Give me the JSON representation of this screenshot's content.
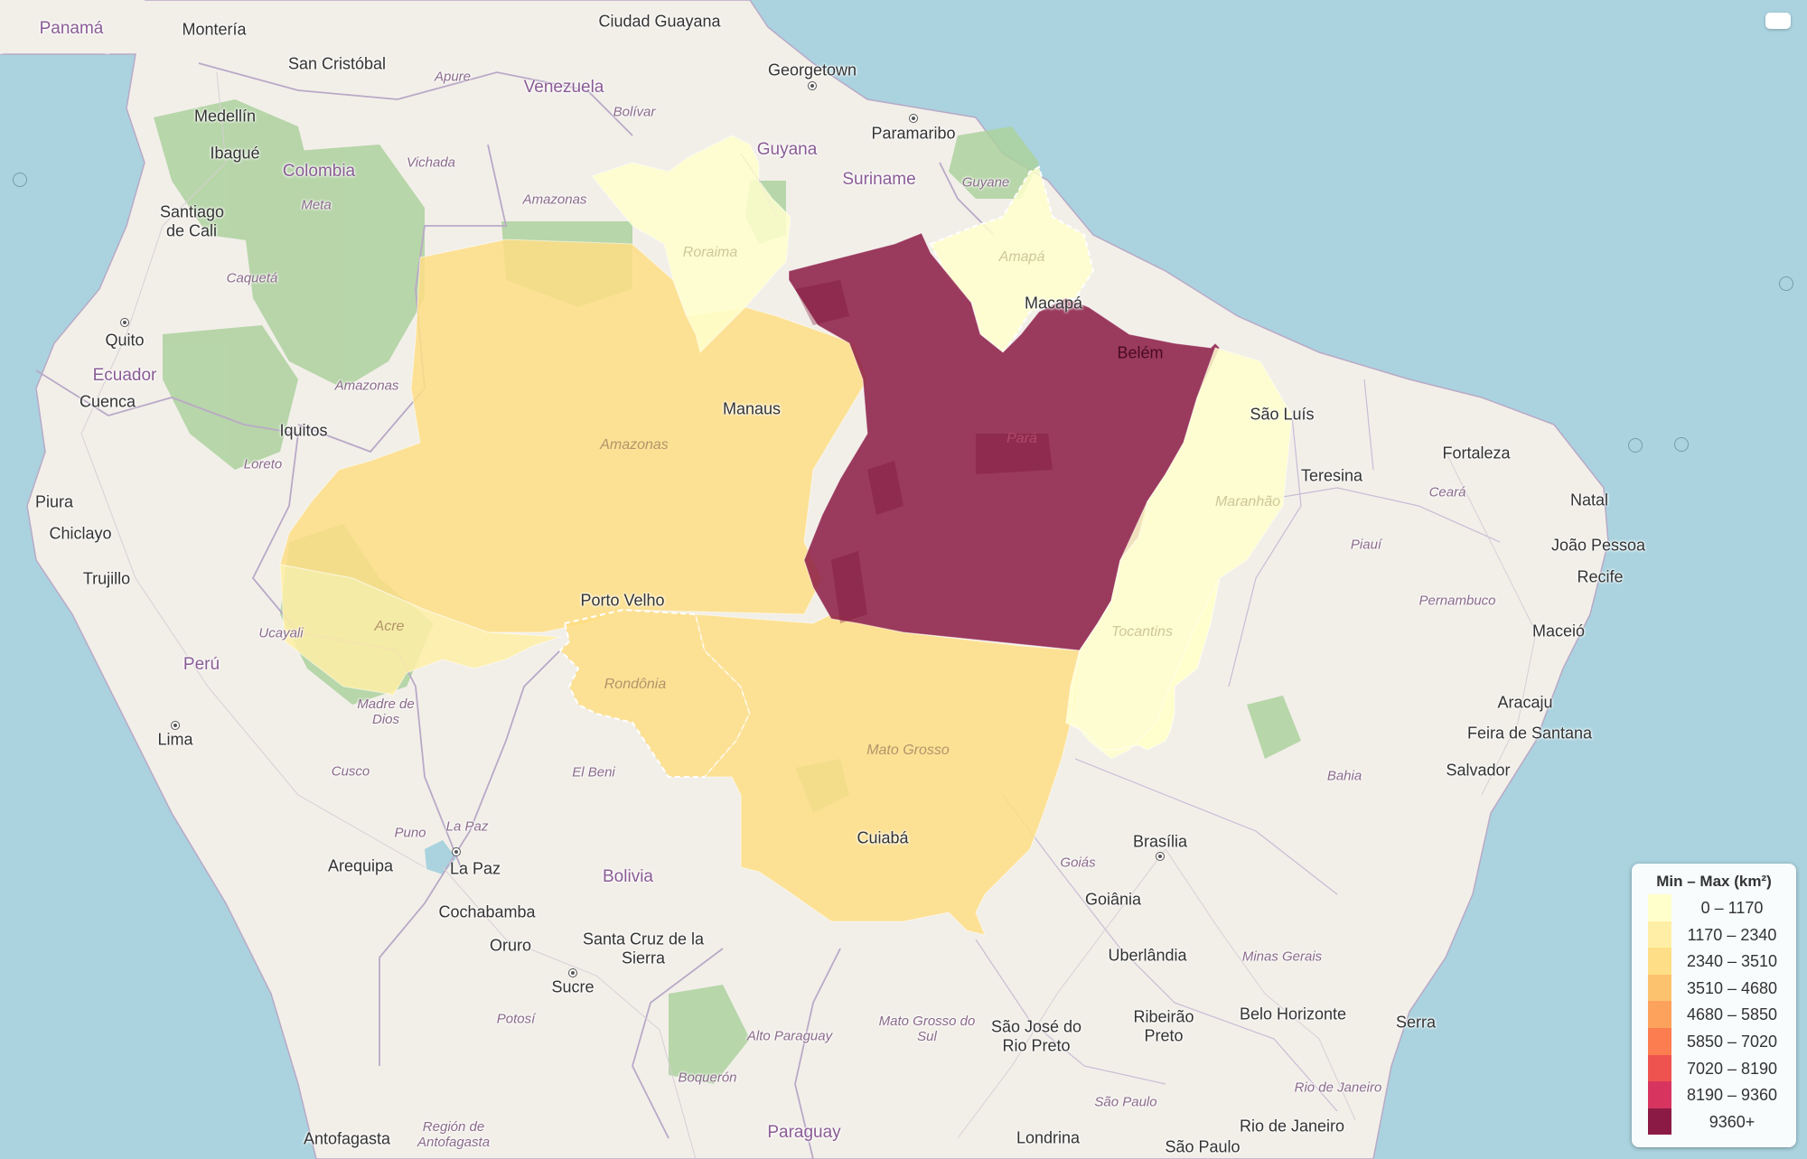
{
  "legend": {
    "title": "Min – Max (km²)",
    "bins": [
      {
        "label": "0 – 1170",
        "color": "#ffffcc"
      },
      {
        "label": "1170 – 2340",
        "color": "#ffefa6"
      },
      {
        "label": "2340 – 3510",
        "color": "#fede86"
      },
      {
        "label": "3510 – 4680",
        "color": "#fdc26e"
      },
      {
        "label": "4680 – 5850",
        "color": "#fda25c"
      },
      {
        "label": "5850 – 7020",
        "color": "#fc7d4f"
      },
      {
        "label": "7020 – 8190",
        "color": "#ef5350"
      },
      {
        "label": "8190 – 9360",
        "color": "#d73560"
      },
      {
        "label": "9360+",
        "color": "#8b1a44"
      }
    ]
  },
  "states": [
    {
      "name": "Amazonas",
      "bin": 2
    },
    {
      "name": "Acre",
      "bin": 1
    },
    {
      "name": "Rondônia",
      "bin": 2
    },
    {
      "name": "Mato Grosso",
      "bin": 2
    },
    {
      "name": "Roraima",
      "bin": 0
    },
    {
      "name": "Amapá",
      "bin": 0
    },
    {
      "name": "Pará",
      "bin": 8
    },
    {
      "name": "Maranhão",
      "bin": 0
    },
    {
      "name": "Tocantins",
      "bin": 0
    }
  ],
  "labels": {
    "countries": [
      "Panamá",
      "Venezuela",
      "Guyana",
      "Suriname",
      "Colombia",
      "Ecuador",
      "Perú",
      "Bolivia",
      "Paraguay"
    ],
    "cities": [
      "Montería",
      "San Cristóbal",
      "Medellín",
      "Ibagué",
      "Santiago de Cali",
      "Quito",
      "Cuenca",
      "Iquitos",
      "Piura",
      "Chiclayo",
      "Trujillo",
      "Lima",
      "Arequipa",
      "La Paz",
      "Cochabamba",
      "Oruro",
      "Sucre",
      "Santa Cruz de la Sierra",
      "Antofagasta",
      "Ciudad Guayana",
      "Georgetown",
      "Paramaribo",
      "Manaus",
      "Macapá",
      "Belém",
      "São Luís",
      "Teresina",
      "Fortaleza",
      "Natal",
      "João Pessoa",
      "Recife",
      "Maceió",
      "Aracaju",
      "Feira de Santana",
      "Salvador",
      "Porto Velho",
      "Cuiabá",
      "Brasília",
      "Goiânia",
      "Uberlândia",
      "Belo Horizonte",
      "Serra",
      "São José do Rio Preto",
      "Ribeirão Preto",
      "Rio de Janeiro",
      "Londrina",
      "São Paulo"
    ],
    "regions": [
      "Apure",
      "Bolívar",
      "Vichada",
      "Amazonas",
      "Meta",
      "Caquetá",
      "Amazonas",
      "Loreto",
      "Ucayali",
      "Madre de Dios",
      "Cusco",
      "Puno",
      "La Paz",
      "El Beni",
      "Potosí",
      "Región de Antofagasta",
      "Alto Paraguay",
      "Boquerón",
      "Mato Grosso do Sul",
      "São Paulo",
      "Goiás",
      "Minas Gerais",
      "Rio de Janeiro",
      "Bahia",
      "Piauí",
      "Ceará",
      "Pernambuco",
      "Guyane"
    ],
    "states": [
      "Amazonas",
      "Acre",
      "Rondônia",
      "Mato Grosso",
      "Roraima",
      "Amapá",
      "Pará",
      "Maranhão",
      "Tocantins"
    ]
  }
}
